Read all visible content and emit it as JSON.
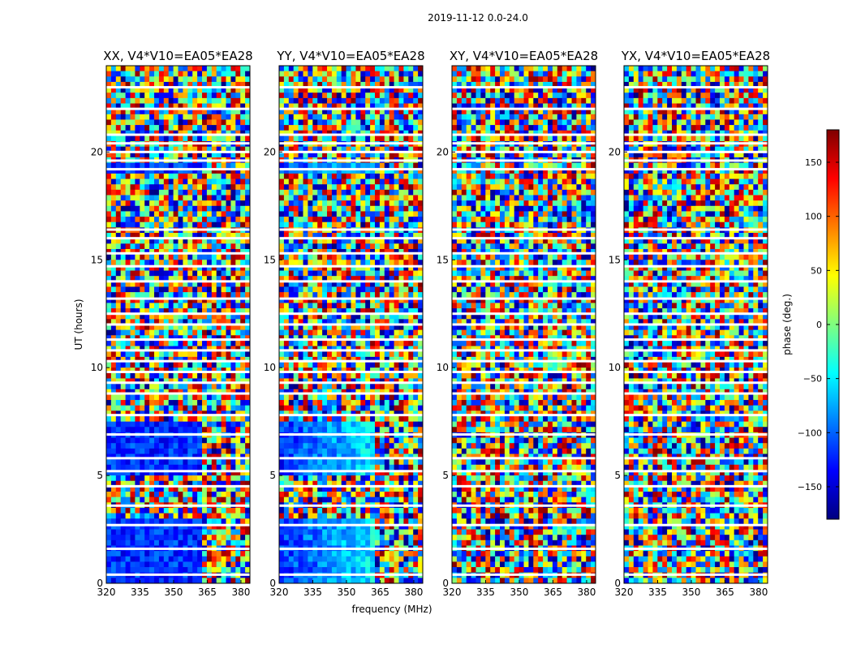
{
  "chart_data": {
    "type": "heatmap",
    "title": "2019-11-12 0.0-24.0",
    "xlabel": "frequency (MHz)",
    "ylabel": "UT (hours)",
    "xlim": [
      320,
      384
    ],
    "ylim": [
      0,
      24
    ],
    "xticks": [
      320,
      335,
      350,
      365,
      380
    ],
    "yticks": [
      0,
      5,
      10,
      15,
      20
    ],
    "colorbar": {
      "label": "phase (deg.)",
      "range": [
        -180,
        180
      ],
      "ticks": [
        150,
        100,
        50,
        0,
        -50,
        -100,
        -150
      ],
      "tick_labels": [
        "150",
        "100",
        "50",
        "0",
        "−50",
        "−100",
        "−150"
      ],
      "colormap": "jet",
      "stops": [
        "#00007f",
        "#0000ff",
        "#007fff",
        "#00ffff",
        "#7fff7f",
        "#ffff00",
        "#ff7f00",
        "#ff0000",
        "#7f0000"
      ]
    },
    "panels": [
      {
        "title": "XX, V4*V10=EA05*EA28",
        "polarization": "XX"
      },
      {
        "title": "YY, V4*V10=EA05*EA28",
        "polarization": "YY"
      },
      {
        "title": "XY, V4*V10=EA05*EA28",
        "polarization": "XY"
      },
      {
        "title": "YX, V4*V10=EA05*EA28",
        "polarization": "YX"
      }
    ]
  }
}
